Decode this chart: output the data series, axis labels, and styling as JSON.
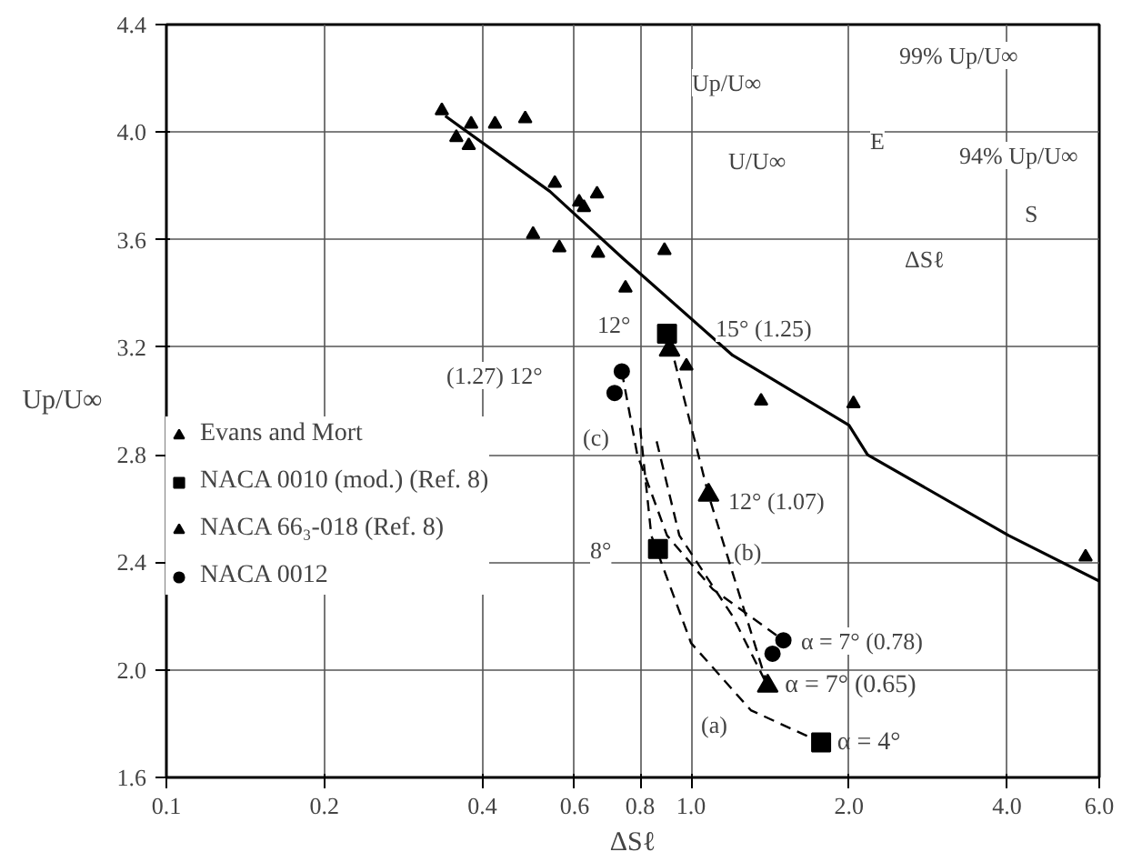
{
  "chart_data": {
    "type": "scatter",
    "xlabel": "ΔSℓ",
    "ylabel": "Up/U∞",
    "log": "x",
    "grid": true,
    "legend": "left",
    "xlim": [
      0.1,
      6.0
    ],
    "ylim": [
      1.6,
      4.4
    ],
    "xticks": [
      0.1,
      0.2,
      0.4,
      0.6,
      0.8,
      {
        "value": 1.0,
        "label": "1.0"
      },
      {
        "value": 2.0,
        "label": "2.0"
      },
      {
        "value": 4.0,
        "label": "4.0"
      },
      {
        "value": 6.0,
        "label": "6.0"
      }
    ],
    "yticks": [
      1.6,
      {
        "value": 2.0,
        "label": "2.0"
      },
      2.4,
      2.8,
      3.2,
      3.6,
      {
        "value": 4.0,
        "label": "4.0"
      },
      4.4
    ],
    "series": [
      {
        "name": "Evans and Mort",
        "marker": "triangle",
        "color": "#000000",
        "x": [
          0.335,
          0.381,
          0.423,
          0.483,
          0.357,
          0.377,
          0.55,
          0.612,
          0.625,
          0.662,
          0.5,
          0.561,
          0.665,
          0.75,
          0.89,
          0.98,
          1.36,
          2.04,
          5.65
        ],
        "values": [
          4.08,
          4.03,
          4.03,
          4.05,
          3.98,
          3.95,
          3.81,
          3.74,
          3.72,
          3.77,
          3.62,
          3.57,
          3.55,
          3.42,
          3.56,
          3.13,
          3.0,
          2.99,
          2.42
        ]
      },
      {
        "name": "NACA 0010 (mod.) (Ref. 8)",
        "marker": "square",
        "color": "#000000",
        "x": [
          0.9,
          0.865,
          1.77
        ],
        "values": [
          3.25,
          2.45,
          1.73
        ]
      },
      {
        "name": "NACA 66₃-018 (Ref. 8)",
        "marker": "triangle",
        "color": "#000000",
        "x": [
          0.91,
          1.08,
          1.4
        ],
        "values": [
          3.19,
          2.65,
          1.94
        ]
      },
      {
        "name": "NACA 0012",
        "marker": "circle",
        "color": "#000000",
        "x": [
          0.715,
          0.738,
          1.43,
          1.5
        ],
        "values": [
          3.03,
          3.11,
          2.06,
          2.11
        ]
      },
      {
        "type": "line",
        "line_style": "solid",
        "color": "#000000",
        "x": [
          0.34,
          0.538,
          0.742,
          1.2,
          2.0,
          2.17,
          4.03,
          6.0
        ],
        "values": [
          4.06,
          3.78,
          3.53,
          3.17,
          2.91,
          2.8,
          2.5,
          2.33
        ]
      },
      {
        "type": "line",
        "line_style": "dashed",
        "color": "#000000",
        "x": [
          0.8,
          0.84,
          1.0,
          1.3,
          1.77
        ],
        "values": [
          2.9,
          2.5,
          2.1,
          1.85,
          1.73
        ]
      },
      {
        "type": "line",
        "line_style": "dashed",
        "color": "#000000",
        "x": [
          0.93,
          1.08,
          1.25,
          1.4
        ],
        "values": [
          3.15,
          2.65,
          2.25,
          1.94
        ]
      },
      {
        "type": "line",
        "line_style": "dashed",
        "color": "#000000",
        "x": [
          0.86,
          0.95,
          1.2,
          1.4
        ],
        "values": [
          2.85,
          2.5,
          2.2,
          1.94
        ]
      },
      {
        "type": "line",
        "line_style": "dashed",
        "color": "#000000",
        "x": [
          0.738,
          0.79,
          0.9,
          1.1,
          1.5
        ],
        "values": [
          3.11,
          2.8,
          2.5,
          2.3,
          2.11
        ]
      }
    ],
    "annotations": [
      "12°",
      "15°  (1.25)",
      "(1.27) 12°",
      "(c)",
      "12° (1.07)",
      "8°",
      "(b)",
      "α = 7° (0.78)",
      {
        "text": "α = 7°  (0.65)",
        "x": 1.51,
        "y": 1.94
      },
      "(a)",
      {
        "text": "α = 4°",
        "x": 1.9,
        "y": 1.73
      },
      "Up/U∞",
      "U/U∞",
      "99%  Up/U∞",
      "E",
      "94% Up/U∞",
      "S",
      "ΔSℓ"
    ]
  }
}
